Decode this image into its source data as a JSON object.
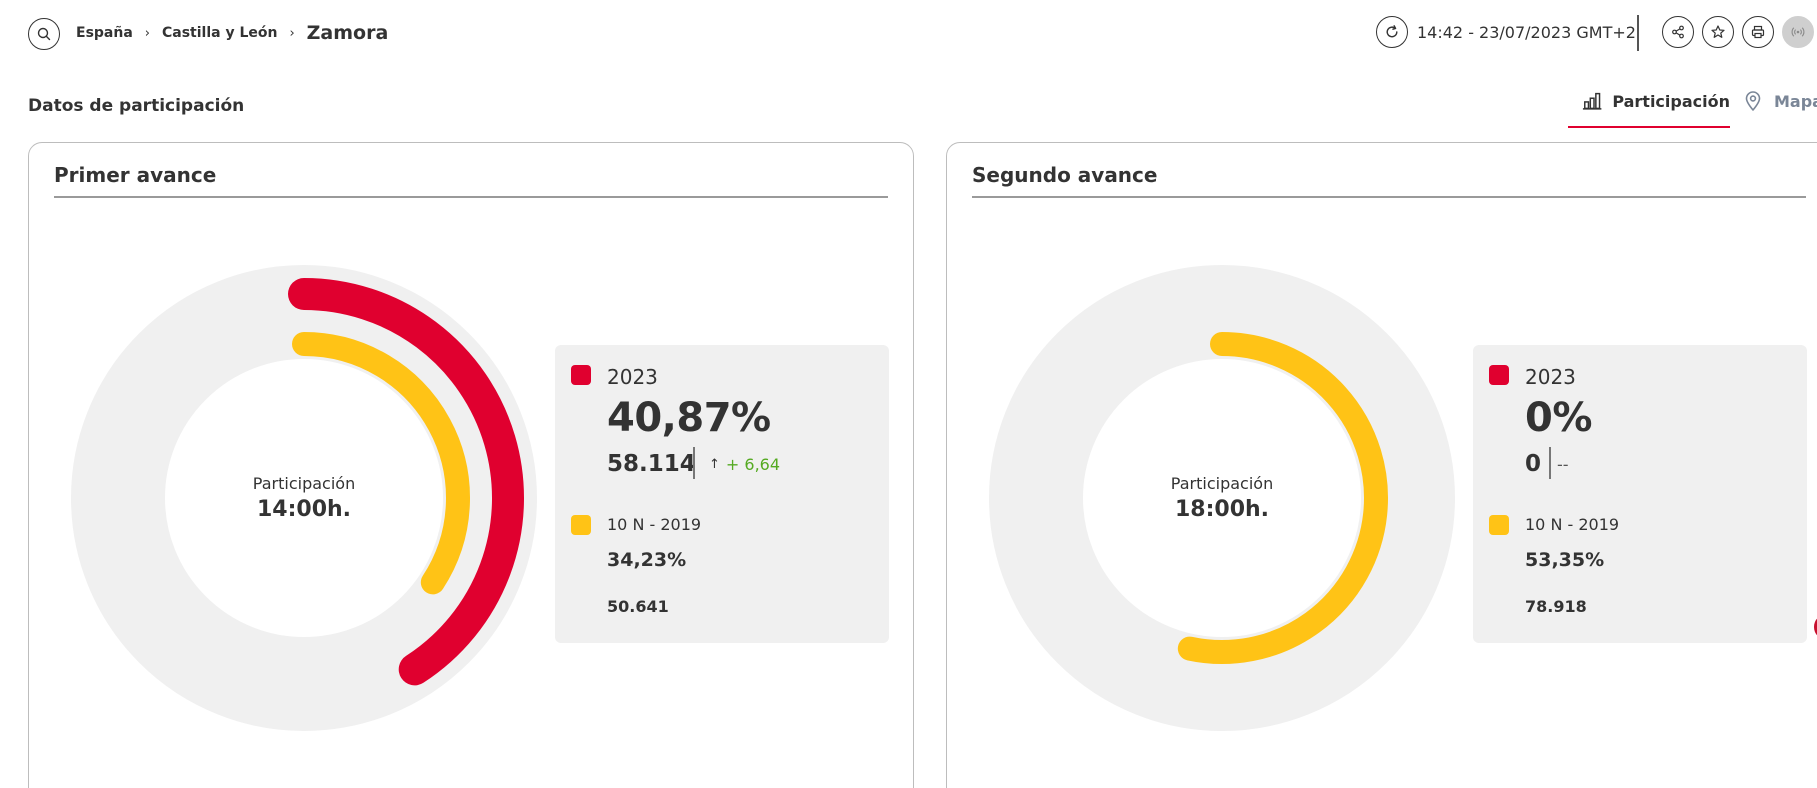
{
  "breadcrumb": {
    "items": [
      "España",
      "Castilla y León"
    ],
    "separator": "›",
    "current": "Zamora"
  },
  "header": {
    "timestamp": "14:42 - 23/07/2023 GMT+2",
    "icons": [
      "search-icon",
      "refresh-icon",
      "share-icon",
      "star-icon",
      "print-icon",
      "live-signal-icon"
    ]
  },
  "section": {
    "title": "Datos de participación",
    "tabs": [
      {
        "label": "Participación",
        "icon": "bar-chart-icon",
        "active": true
      },
      {
        "label": "Mapa",
        "icon": "map-pin-icon",
        "active": false
      }
    ]
  },
  "colors": {
    "current_year": "#e0002f",
    "previous_election": "#ffc316",
    "track": "#f0f0f0",
    "positive_delta": "#55aa22"
  },
  "cards": [
    {
      "title": "Primer avance",
      "center_label": "Participación",
      "center_time": "14:00h.",
      "current": {
        "label": "2023",
        "percent_text": "40,87%",
        "percent_value": 40.87,
        "count": "58.114",
        "delta": "+ 6,64",
        "delta_arrow": "↑"
      },
      "previous": {
        "label": "10 N - 2019",
        "percent_text": "34,23%",
        "percent_value": 34.23,
        "count": "50.641"
      }
    },
    {
      "title": "Segundo avance",
      "center_label": "Participación",
      "center_time": "18:00h.",
      "current": {
        "label": "2023",
        "percent_text": "0%",
        "percent_value": 0,
        "count": "0",
        "delta": "--",
        "delta_arrow": ""
      },
      "previous": {
        "label": "10 N - 2019",
        "percent_text": "53,35%",
        "percent_value": 53.35,
        "count": "78.918"
      }
    }
  ]
}
